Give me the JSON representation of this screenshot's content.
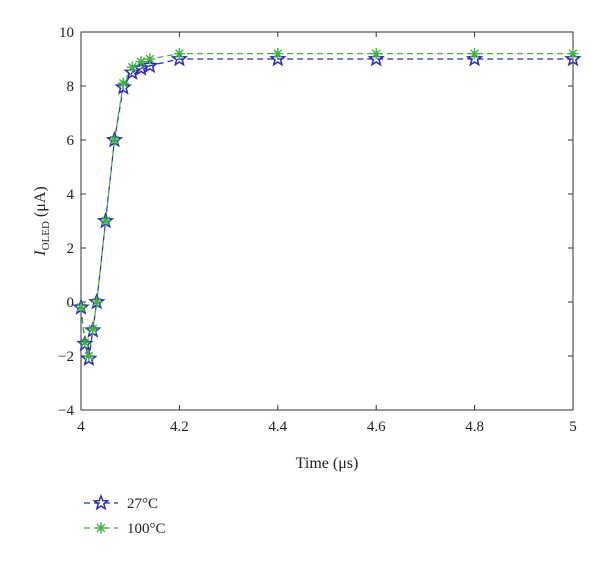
{
  "chart_data": {
    "type": "line",
    "xlabel": "Time (μs)",
    "ylabel": "I_OLED (μA)",
    "xlim": [
      4,
      5
    ],
    "ylim": [
      -4,
      10
    ],
    "xticks": [
      4,
      4.2,
      4.4,
      4.6,
      4.8,
      5
    ],
    "yticks": [
      -4,
      -2,
      0,
      2,
      4,
      6,
      8,
      10
    ],
    "xtick_labels": [
      "4",
      "4.2",
      "4.4",
      "4.6",
      "4.8",
      "5"
    ],
    "ytick_labels": [
      "−4",
      "−2",
      "0",
      "2",
      "4",
      "6",
      "8",
      "10"
    ],
    "ylabel_parts": {
      "symbol": "I",
      "subscript": "OLED",
      "unit": "(μA)"
    },
    "grid": false,
    "legend_position": "bottom-left",
    "series": [
      {
        "name": "27°C",
        "color": "#2a2ab8",
        "marker": "star",
        "x": [
          4.0,
          4.008,
          4.016,
          4.024,
          4.032,
          4.05,
          4.068,
          4.086,
          4.104,
          4.122,
          4.14,
          4.2,
          4.4,
          4.6,
          4.8,
          5.0
        ],
        "y": [
          -0.2,
          -1.55,
          -2.1,
          -1.05,
          0.0,
          3.0,
          6.0,
          7.95,
          8.5,
          8.65,
          8.75,
          9.0,
          9.0,
          9.0,
          9.0,
          9.0
        ]
      },
      {
        "name": "100°C",
        "color": "#3fb23f",
        "marker": "asterisk",
        "x": [
          4.0,
          4.008,
          4.016,
          4.024,
          4.032,
          4.05,
          4.068,
          4.086,
          4.104,
          4.122,
          4.14,
          4.2,
          4.4,
          4.6,
          4.8,
          5.0
        ],
        "y": [
          -0.2,
          -1.5,
          -2.0,
          -1.0,
          0.0,
          3.0,
          6.0,
          8.1,
          8.7,
          8.9,
          9.0,
          9.2,
          9.2,
          9.2,
          9.2,
          9.2
        ]
      }
    ]
  }
}
